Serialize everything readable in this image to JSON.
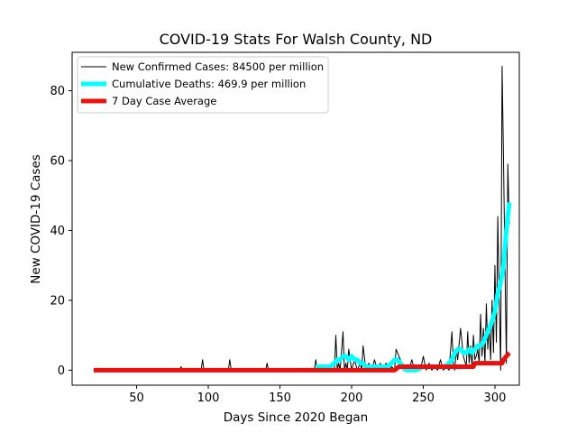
{
  "chart_data": {
    "type": "line",
    "title": "COVID-19 Stats For Walsh County, ND",
    "xlabel": "Days Since 2020 Began",
    "ylabel": "New COVID-19 Cases",
    "xlim": [
      5,
      317
    ],
    "ylim": [
      -4.3,
      91
    ],
    "xticks": [
      50,
      100,
      150,
      200,
      250,
      300
    ],
    "yticks": [
      0,
      20,
      40,
      60,
      80
    ],
    "grid": false,
    "legend_position": "top-left",
    "series": [
      {
        "name": "New Confirmed Cases: 84500 per million",
        "color": "#000000",
        "x": [
          20,
          40,
          60,
          80,
          81,
          82,
          85,
          90,
          95,
          96,
          97,
          100,
          105,
          110,
          114,
          115,
          116,
          120,
          125,
          130,
          135,
          140,
          141,
          142,
          145,
          150,
          155,
          160,
          165,
          170,
          174,
          175,
          176,
          180,
          185,
          188,
          189,
          190,
          191,
          192,
          194,
          195,
          196,
          197,
          198,
          200,
          202,
          204,
          206,
          207,
          208,
          210,
          212,
          214,
          216,
          218,
          220,
          222,
          224,
          226,
          228,
          230,
          231,
          232,
          234,
          236,
          238,
          240,
          242,
          244,
          246,
          248,
          250,
          252,
          254,
          256,
          258,
          260,
          262,
          264,
          266,
          268,
          270,
          271,
          272,
          273,
          274,
          276,
          278,
          280,
          281,
          282,
          283,
          284,
          285,
          286,
          287,
          288,
          289,
          290,
          291,
          292,
          293,
          294,
          295,
          296,
          297,
          298,
          299,
          300,
          301,
          302,
          303,
          304,
          305,
          306,
          307,
          308,
          309,
          310
        ],
        "y": [
          0,
          0,
          0,
          0,
          1,
          0,
          0,
          0,
          0,
          3,
          0,
          0,
          0,
          0,
          0,
          3,
          0,
          0,
          0,
          0,
          0,
          0,
          2,
          0,
          0,
          0,
          0,
          0,
          0,
          0,
          0,
          3,
          0,
          0,
          0,
          0,
          10,
          0,
          2,
          0,
          11,
          0,
          2,
          0,
          6,
          0,
          3,
          0,
          2,
          0,
          7,
          0,
          2,
          0,
          3,
          0,
          2,
          0,
          2,
          0,
          1,
          0,
          6,
          5,
          3,
          0,
          1,
          0,
          3,
          0,
          1,
          0,
          4,
          0,
          2,
          0,
          1,
          0,
          3,
          0,
          1,
          0,
          11,
          2,
          0,
          6,
          3,
          12,
          4,
          1,
          11,
          2,
          7,
          1,
          10,
          3,
          4,
          6,
          2,
          16,
          4,
          12,
          2,
          19,
          6,
          13,
          3,
          20,
          5,
          30,
          8,
          44,
          20,
          0,
          87,
          60,
          30,
          2,
          59,
          42
        ],
        "line_width": 1
      },
      {
        "name": "Cumulative Deaths: 469.9 per million",
        "color": "#00ffff",
        "x": [
          175,
          180,
          185,
          188,
          190,
          192,
          194,
          196,
          198,
          200,
          202,
          204,
          206,
          208,
          210,
          215,
          220,
          225,
          228,
          230,
          232,
          234,
          236,
          238,
          240,
          245,
          250,
          255,
          260,
          265,
          268,
          270,
          272,
          274,
          276,
          278,
          280,
          282,
          284,
          286,
          288,
          290,
          292,
          294,
          296,
          298,
          300,
          302,
          304,
          306,
          308,
          310
        ],
        "y": [
          1,
          1,
          1,
          2,
          3,
          3,
          4,
          4,
          3,
          4,
          3,
          3,
          2,
          2,
          1,
          1,
          1,
          1,
          2,
          3,
          3,
          2,
          1,
          0,
          0,
          0,
          1,
          1,
          1,
          1,
          2,
          3,
          5,
          6,
          6,
          5,
          5,
          6,
          5,
          6,
          7,
          7,
          8,
          10,
          12,
          14,
          17,
          22,
          25,
          30,
          40,
          48
        ],
        "line_width": 5
      },
      {
        "name": "7 Day Case Average",
        "color": "#e8110f",
        "x": [
          20,
          100,
          150,
          200,
          230,
          233,
          240,
          250,
          260,
          270,
          280,
          285,
          286,
          290,
          300,
          304,
          305,
          306,
          308,
          310
        ],
        "y": [
          0,
          0,
          0,
          0,
          0,
          1,
          1,
          1,
          1,
          1,
          1,
          1,
          2,
          2,
          2,
          2,
          2,
          3,
          4,
          5
        ],
        "line_width": 5
      }
    ]
  }
}
